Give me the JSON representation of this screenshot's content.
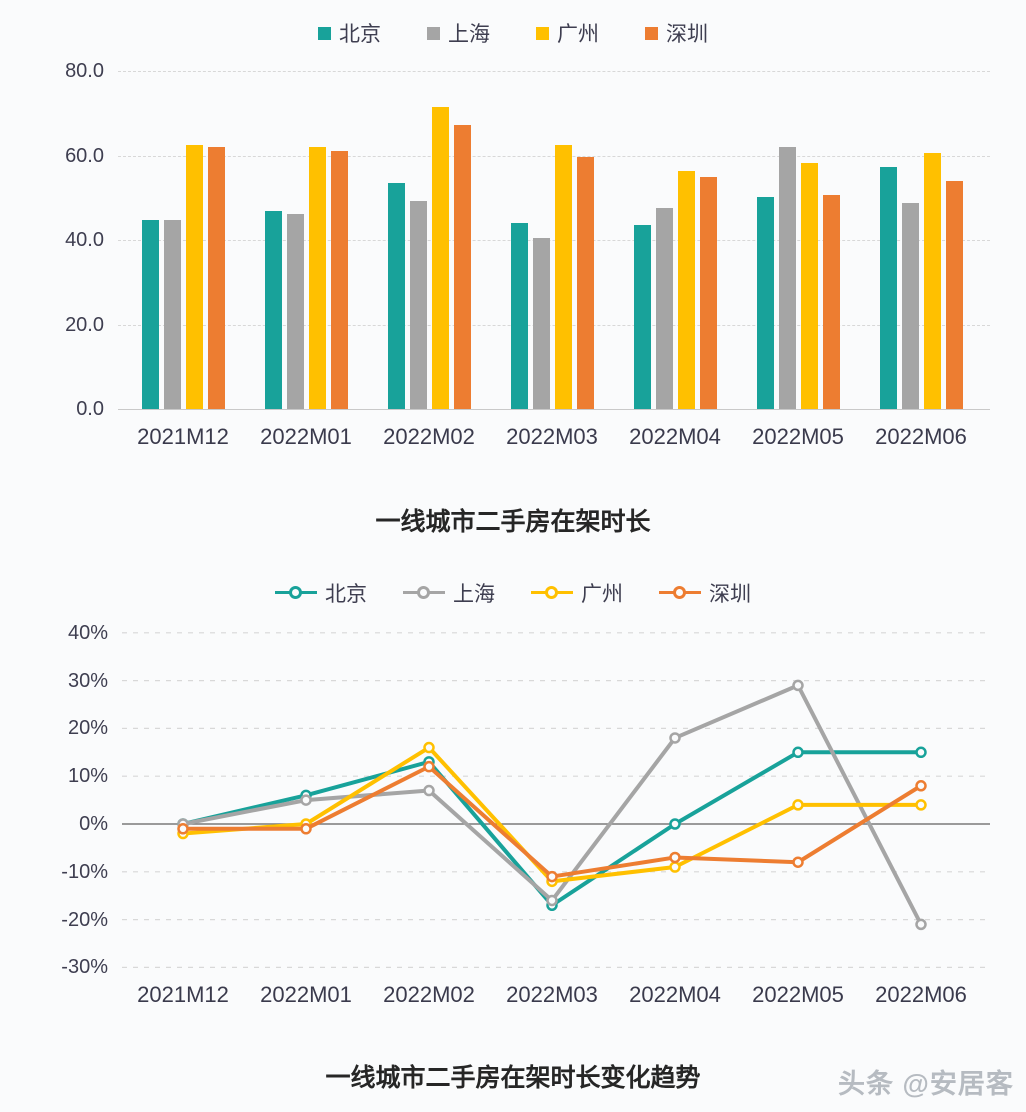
{
  "page": {
    "background": "#FAFBFC",
    "watermark": "头条 @安居客"
  },
  "colors": {
    "axis_text": "#3E3E50",
    "title_text": "#262626",
    "gridline": "#D8D8D8",
    "bar_baseline": "#C9C9C9",
    "zero_line": "#7A7A7A",
    "watermark_text": "#B6BBC1"
  },
  "chart_data": [
    {
      "type": "bar",
      "title": "一线城市二手房在架时长",
      "legend_position": "top",
      "grid": true,
      "ylim": [
        0,
        80
      ],
      "yticks": [
        "80.0",
        "60.0",
        "40.0",
        "20.0",
        "0.0"
      ],
      "ytick_values": [
        80,
        60,
        40,
        20,
        0
      ],
      "categories": [
        "2021M12",
        "2022M01",
        "2022M02",
        "2022M03",
        "2022M04",
        "2022M05",
        "2022M06"
      ],
      "series": [
        {
          "name": "北京",
          "color": "#18A29A",
          "values": [
            44.8,
            46.8,
            53.5,
            44.0,
            43.5,
            50.2,
            57.3
          ]
        },
        {
          "name": "上海",
          "color": "#A5A5A5",
          "values": [
            44.7,
            46.2,
            49.2,
            40.5,
            47.6,
            61.9,
            48.7
          ]
        },
        {
          "name": "广州",
          "color": "#FFC000",
          "values": [
            62.4,
            62.0,
            71.4,
            62.4,
            56.3,
            58.3,
            60.5
          ]
        },
        {
          "name": "深圳",
          "color": "#ED7D31",
          "values": [
            61.9,
            61.0,
            67.2,
            59.7,
            54.9,
            50.6,
            53.9
          ]
        }
      ]
    },
    {
      "type": "line",
      "title": "一线城市二手房在架时长变化趋势",
      "legend_position": "top",
      "grid": true,
      "ylim": [
        -30,
        40
      ],
      "yticks": [
        "40%",
        "30%",
        "20%",
        "10%",
        "0%",
        "-10%",
        "-20%",
        "-30%"
      ],
      "ytick_values": [
        40,
        30,
        20,
        10,
        0,
        -10,
        -20,
        -30
      ],
      "categories": [
        "2021M12",
        "2022M01",
        "2022M02",
        "2022M03",
        "2022M04",
        "2022M05",
        "2022M06"
      ],
      "series": [
        {
          "name": "北京",
          "color": "#18A29A",
          "values": [
            0,
            6,
            13,
            -17,
            0,
            15,
            15
          ]
        },
        {
          "name": "上海",
          "color": "#A5A5A5",
          "values": [
            0,
            5,
            7,
            -16,
            18,
            29,
            -21
          ]
        },
        {
          "name": "广州",
          "color": "#FFC000",
          "values": [
            -2,
            0,
            16,
            -12,
            -9,
            4,
            4
          ]
        },
        {
          "name": "深圳",
          "color": "#ED7D31",
          "values": [
            -1,
            -1,
            12,
            -11,
            -7,
            -8,
            8
          ]
        }
      ]
    }
  ]
}
